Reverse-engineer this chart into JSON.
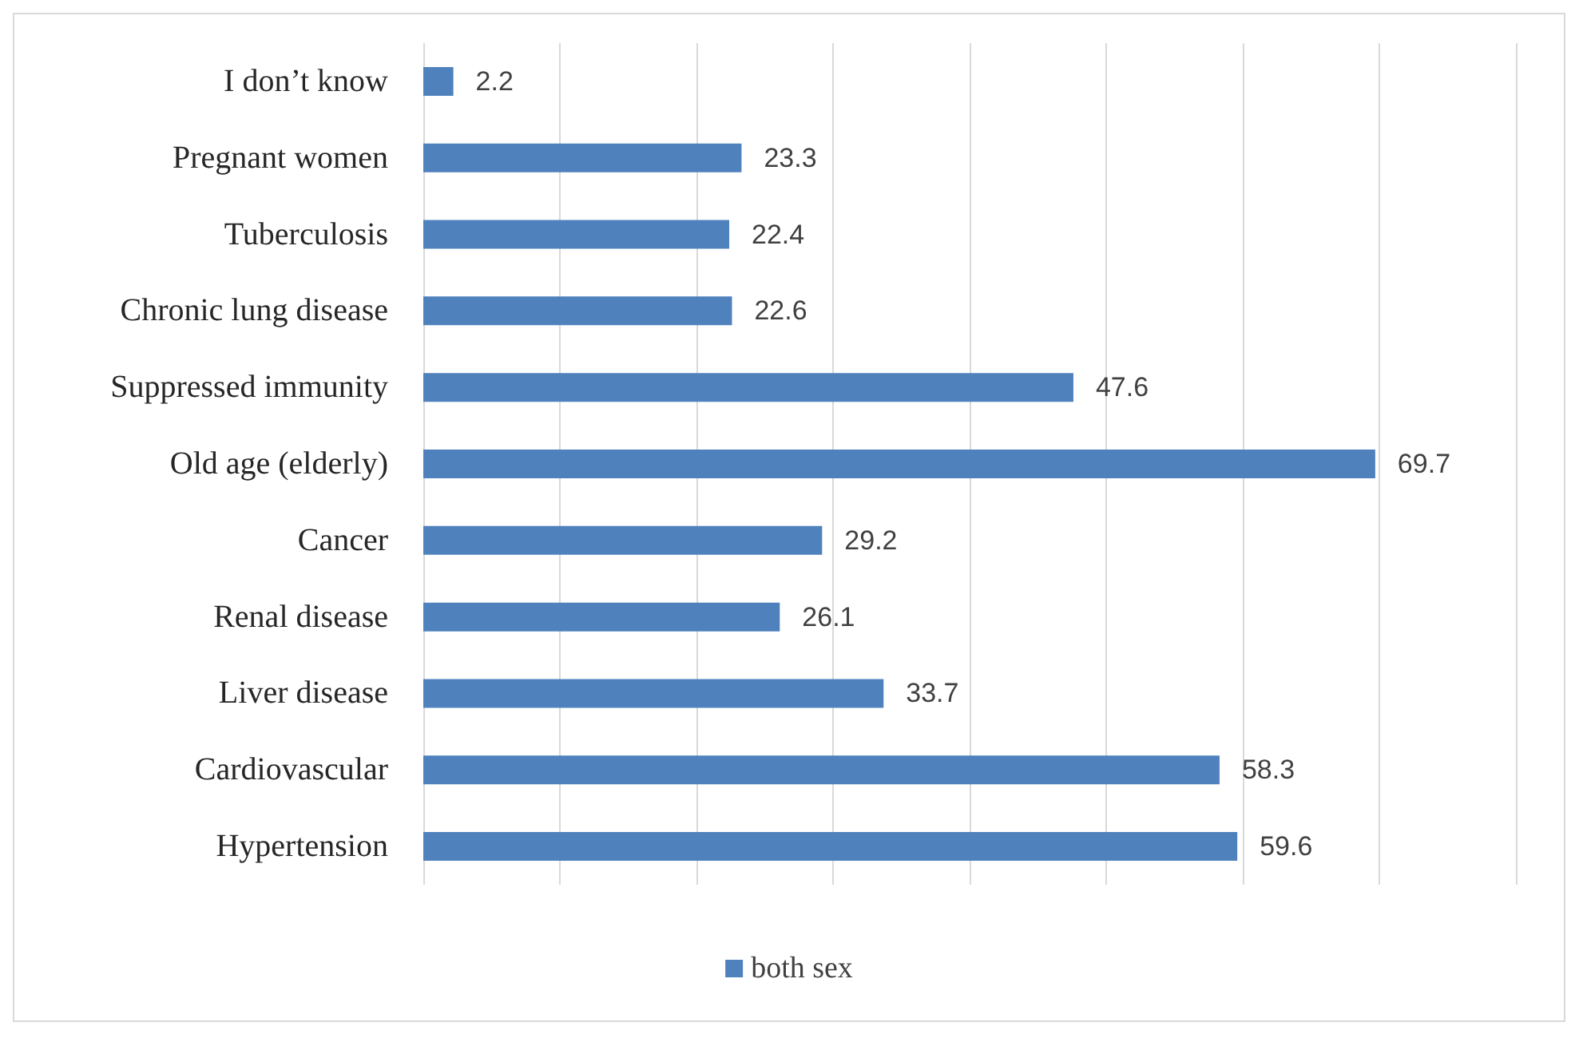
{
  "chart_data": {
    "type": "bar",
    "orientation": "horizontal",
    "categories": [
      "I don’t know",
      "Pregnant women",
      "Tuberculosis",
      "Chronic lung disease",
      "Suppressed immunity",
      "Old age (elderly)",
      "Cancer",
      "Renal disease",
      "Liver disease",
      "Cardiovascular",
      "Hypertension"
    ],
    "series": [
      {
        "name": "both sex",
        "color": "#4f81bd",
        "values": [
          2.2,
          23.3,
          22.4,
          22.6,
          47.6,
          69.7,
          29.2,
          26.1,
          33.7,
          58.3,
          59.6
        ]
      }
    ],
    "xlim": [
      0,
      80
    ],
    "xticks": [
      {
        "value": 0,
        "label": null
      },
      {
        "value": 10,
        "label": null
      },
      {
        "value": 20,
        "label": null
      },
      {
        "value": 30,
        "label": null
      },
      {
        "value": 40,
        "label": null
      },
      {
        "value": 50,
        "label": null
      },
      {
        "value": 60,
        "label": null
      },
      {
        "value": 70,
        "label": null
      },
      {
        "value": 80,
        "label": null
      }
    ],
    "tick_labels": "y",
    "grid": "x",
    "legend": "bottom",
    "data_labels": true
  }
}
